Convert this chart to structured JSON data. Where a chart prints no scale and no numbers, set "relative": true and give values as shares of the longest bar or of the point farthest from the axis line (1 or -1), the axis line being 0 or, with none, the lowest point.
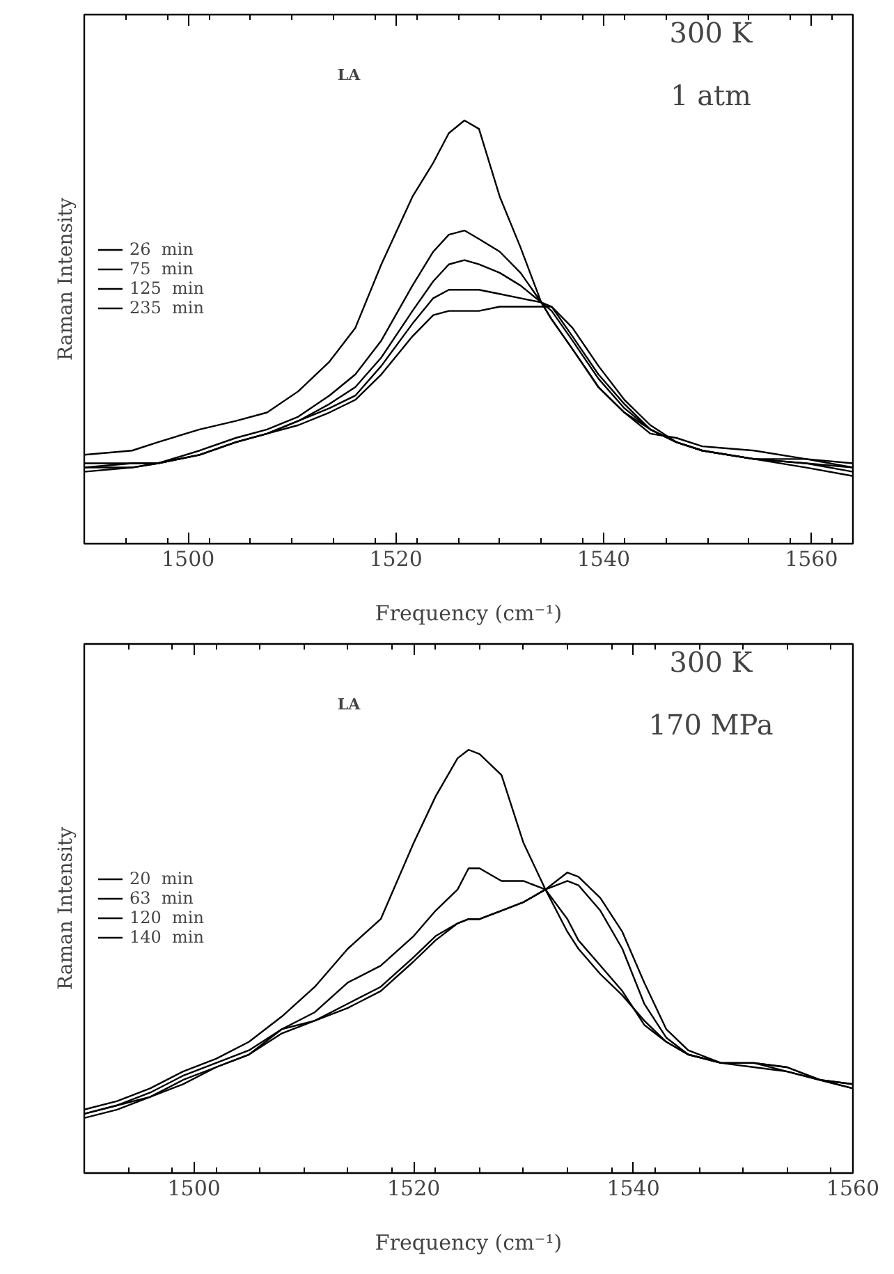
{
  "chart_data": [
    {
      "type": "line",
      "relative": true,
      "xlabel": "Frequency (cm⁻¹)",
      "ylabel": "Raman Intensity",
      "xlim": [
        1490,
        1564
      ],
      "xticks": [
        1500,
        1520,
        1540,
        1560
      ],
      "grid": false,
      "legend": "left",
      "marker": "none",
      "line_style": "solid",
      "annotations": [
        "LA",
        "300 K",
        "1 atm"
      ],
      "x": [
        1490,
        1494.6,
        1497.1,
        1501.1,
        1504.6,
        1507.6,
        1510.6,
        1513.6,
        1516.1,
        1518.6,
        1521.6,
        1523.6,
        1525.1,
        1526.6,
        1528,
        1530,
        1532,
        1534,
        1535,
        1537,
        1539.5,
        1542,
        1544.5,
        1547,
        1549.5,
        1554.5,
        1559.5,
        1564
      ],
      "series": [
        {
          "name": "26  min",
          "color": "#000000",
          "values": [
            0.21,
            0.22,
            0.24,
            0.27,
            0.29,
            0.31,
            0.36,
            0.43,
            0.51,
            0.66,
            0.82,
            0.9,
            0.97,
            1.0,
            0.98,
            0.82,
            0.7,
            0.57,
            0.53,
            0.46,
            0.37,
            0.31,
            0.26,
            0.25,
            0.23,
            0.22,
            0.2,
            0.18
          ]
        },
        {
          "name": "75  min",
          "color": "#000000",
          "values": [
            0.18,
            0.19,
            0.19,
            0.22,
            0.25,
            0.27,
            0.3,
            0.35,
            0.4,
            0.48,
            0.61,
            0.69,
            0.73,
            0.74,
            0.72,
            0.69,
            0.64,
            0.57,
            0.53,
            0.46,
            0.37,
            0.31,
            0.27,
            0.24,
            0.22,
            0.2,
            0.19,
            0.18
          ]
        },
        {
          "name": "125  min",
          "color": "#000000",
          "values": [
            0.17,
            0.18,
            0.19,
            0.21,
            0.24,
            0.26,
            0.29,
            0.33,
            0.37,
            0.44,
            0.55,
            0.62,
            0.66,
            0.67,
            0.66,
            0.64,
            0.61,
            0.57,
            0.55,
            0.48,
            0.39,
            0.32,
            0.27,
            0.24,
            0.22,
            0.2,
            0.19,
            0.17
          ]
        },
        {
          "color": "#000000",
          "values": [
            0.19,
            0.19,
            0.19,
            0.21,
            0.24,
            0.26,
            0.29,
            0.32,
            0.35,
            0.42,
            0.52,
            0.58,
            0.6,
            0.6,
            0.6,
            0.59,
            0.58,
            0.57,
            0.56,
            0.49,
            0.4,
            0.33,
            0.27,
            0.24,
            0.22,
            0.2,
            0.2,
            0.19
          ]
        },
        {
          "name": "235  min",
          "color": "#000000",
          "values": [
            0.18,
            0.18,
            0.19,
            0.21,
            0.24,
            0.26,
            0.28,
            0.31,
            0.34,
            0.4,
            0.49,
            0.54,
            0.55,
            0.55,
            0.55,
            0.56,
            0.56,
            0.56,
            0.56,
            0.51,
            0.42,
            0.34,
            0.28,
            0.24,
            0.22,
            0.2,
            0.18,
            0.16
          ]
        }
      ]
    },
    {
      "type": "line",
      "relative": true,
      "xlabel": "Frequency (cm⁻¹)",
      "ylabel": "Raman Intensity",
      "xlim": [
        1490,
        1560
      ],
      "xticks": [
        1500,
        1520,
        1540,
        1560
      ],
      "grid": false,
      "legend": "left",
      "marker": "none",
      "line_style": "solid",
      "annotations": [
        "LA",
        "300 K",
        "170 MPa"
      ],
      "x": [
        1490,
        1493,
        1496,
        1499,
        1502,
        1505,
        1508,
        1511,
        1514,
        1517,
        1520,
        1522,
        1524,
        1525,
        1526,
        1528,
        1530,
        1532,
        1534,
        1535,
        1537,
        1539,
        1541,
        1543,
        1545,
        1548,
        1551,
        1554,
        1557,
        1560
      ],
      "series": [
        {
          "name": "20  min",
          "color": "#000000",
          "values": [
            0.15,
            0.17,
            0.2,
            0.24,
            0.27,
            0.31,
            0.37,
            0.44,
            0.53,
            0.6,
            0.78,
            0.89,
            0.98,
            1.0,
            0.99,
            0.94,
            0.78,
            0.67,
            0.57,
            0.53,
            0.47,
            0.42,
            0.36,
            0.31,
            0.28,
            0.26,
            0.26,
            0.25,
            0.22,
            0.21
          ]
        },
        {
          "name": "63  min",
          "color": "#000000",
          "values": [
            0.14,
            0.16,
            0.19,
            0.23,
            0.26,
            0.29,
            0.34,
            0.38,
            0.45,
            0.49,
            0.56,
            0.62,
            0.67,
            0.72,
            0.72,
            0.69,
            0.69,
            0.67,
            0.6,
            0.55,
            0.49,
            0.43,
            0.35,
            0.31,
            0.28,
            0.26,
            0.26,
            0.25,
            0.22,
            0.21
          ]
        },
        {
          "name": "120  min",
          "color": "#000000",
          "values": [
            0.13,
            0.15,
            0.18,
            0.21,
            0.25,
            0.28,
            0.34,
            0.36,
            0.4,
            0.44,
            0.51,
            0.56,
            0.59,
            0.6,
            0.6,
            0.62,
            0.64,
            0.67,
            0.69,
            0.68,
            0.62,
            0.53,
            0.4,
            0.32,
            0.28,
            0.26,
            0.26,
            0.24,
            0.22,
            0.2
          ]
        },
        {
          "name": "140  min",
          "color": "#000000",
          "values": [
            0.14,
            0.16,
            0.18,
            0.22,
            0.25,
            0.28,
            0.33,
            0.36,
            0.39,
            0.43,
            0.5,
            0.55,
            0.59,
            0.6,
            0.6,
            0.62,
            0.64,
            0.67,
            0.71,
            0.7,
            0.65,
            0.57,
            0.45,
            0.34,
            0.29,
            0.26,
            0.25,
            0.24,
            0.22,
            0.2
          ]
        }
      ]
    }
  ]
}
